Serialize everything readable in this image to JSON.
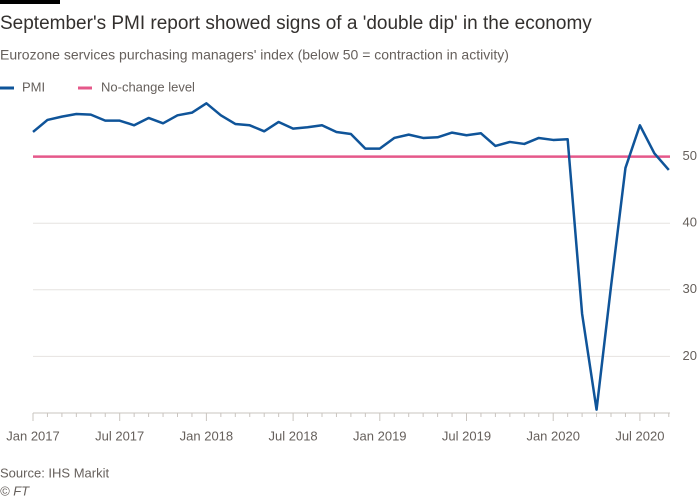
{
  "chart_data": {
    "type": "line",
    "title": "September's PMI report showed signs of a 'double dip' in the economy",
    "subtitle": "Eurozone services purchasing managers' index (below 50 = contraction in activity)",
    "categories": [
      "Jan 2017",
      null,
      null,
      null,
      null,
      null,
      "Jul 2017",
      null,
      null,
      null,
      null,
      null,
      "Jan 2018",
      null,
      null,
      null,
      null,
      null,
      "Jul 2018",
      null,
      null,
      null,
      null,
      null,
      "Jan 2019",
      null,
      null,
      null,
      null,
      null,
      "Jul 2019",
      null,
      null,
      null,
      null,
      null,
      "Jan 2020",
      null,
      null,
      null,
      null,
      null,
      "Jul 2020",
      null,
      null
    ],
    "series": [
      {
        "name": "PMI",
        "color": "#0f5499",
        "values": [
          53.7,
          55.5,
          56.0,
          56.4,
          56.3,
          55.4,
          55.4,
          54.7,
          55.8,
          55.0,
          56.2,
          56.6,
          58.0,
          56.2,
          54.9,
          54.7,
          53.8,
          55.2,
          54.2,
          54.4,
          54.7,
          53.7,
          53.4,
          51.2,
          51.2,
          52.8,
          53.3,
          52.8,
          52.9,
          53.6,
          53.2,
          53.5,
          51.6,
          52.2,
          51.9,
          52.8,
          52.5,
          52.6,
          26.4,
          12.0,
          30.5,
          48.3,
          54.7,
          50.5,
          48.0
        ]
      }
    ],
    "reference_line": {
      "name": "No-change level",
      "value": 50,
      "color": "#e5588a"
    },
    "ylim": [
      11.5,
      60
    ],
    "yticks": [
      20,
      30,
      40,
      50
    ],
    "grid": true,
    "legend": "top-left",
    "source": "Source: IHS Markit",
    "credit": "© FT"
  }
}
